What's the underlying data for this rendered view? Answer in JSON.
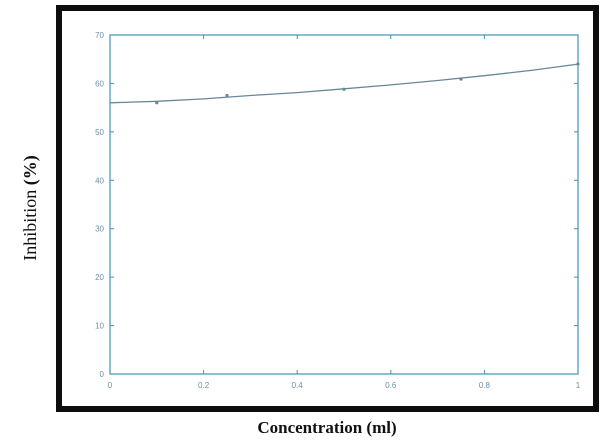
{
  "chart_data": {
    "type": "line",
    "title": "",
    "xlabel": "Concentration (ml)",
    "ylabel_prefix": "Inhibition ",
    "ylabel_unit": "(%)",
    "xlim": [
      0,
      1
    ],
    "ylim": [
      0,
      70
    ],
    "x_ticks": [
      "0",
      "0.2",
      "0.4",
      "0.6",
      "0.8",
      "1"
    ],
    "y_ticks": [
      "0",
      "10",
      "20",
      "30",
      "40",
      "50",
      "60",
      "70"
    ],
    "grid": false,
    "legend": "none",
    "series": [
      {
        "x": [
          0,
          0.1,
          0.2,
          0.3,
          0.4,
          0.5,
          0.6,
          0.7,
          0.8,
          0.9,
          1.0
        ],
        "values": [
          56.0,
          56.3,
          56.8,
          57.5,
          58.1,
          58.9,
          59.7,
          60.6,
          61.6,
          62.7,
          64.0
        ],
        "color": "#6a8796"
      }
    ],
    "markers": {
      "x": [
        0.1,
        0.25,
        0.5,
        0.75,
        1.0
      ],
      "values": [
        56.0,
        57.5,
        58.8,
        60.9,
        64.0
      ]
    }
  },
  "frame_color": "#0d0d0d",
  "axis_color": "#3f95b3"
}
